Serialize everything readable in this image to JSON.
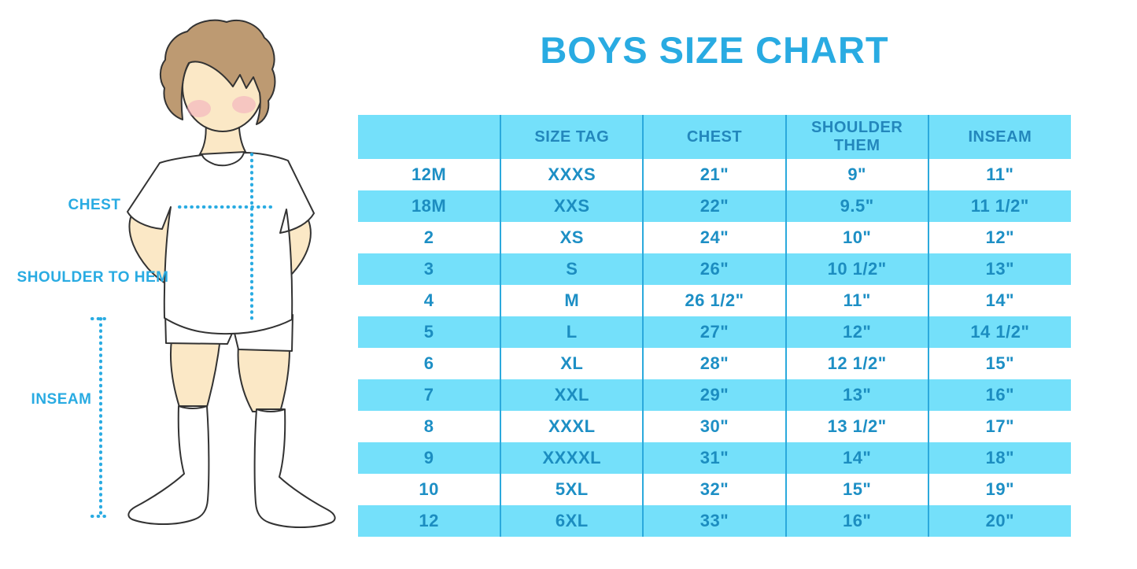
{
  "title": "BOYS SIZE CHART",
  "colors": {
    "accent_blue": "#29ABE2",
    "row_highlight": "#74E0FA",
    "table_text": "#1D8FC5",
    "column_separator": "#2BA9DC",
    "hair_brown": "#BD9A72",
    "skin_tan": "#FBE8C6",
    "blush_pink": "#F2A9BE"
  },
  "figure": {
    "description": "boy-measurement-illustration",
    "labels": {
      "chest": "CHEST",
      "shoulder_to_hem": "SHOULDER TO HEM",
      "inseam": "INSEAM"
    }
  },
  "table": {
    "columns": [
      "",
      "SIZE TAG",
      "CHEST",
      "SHOULDER THEM",
      "INSEAM"
    ],
    "rows": [
      [
        "12M",
        "XXXS",
        "21\"",
        "9\"",
        "11\""
      ],
      [
        "18M",
        "XXS",
        "22\"",
        "9.5\"",
        "11 1/2\""
      ],
      [
        "2",
        "XS",
        "24\"",
        "10\"",
        "12\""
      ],
      [
        "3",
        "S",
        "26\"",
        "10 1/2\"",
        "13\""
      ],
      [
        "4",
        "M",
        "26 1/2\"",
        "11\"",
        "14\""
      ],
      [
        "5",
        "L",
        "27\"",
        "12\"",
        "14 1/2\""
      ],
      [
        "6",
        "XL",
        "28\"",
        "12 1/2\"",
        "15\""
      ],
      [
        "7",
        "XXL",
        "29\"",
        "13\"",
        "16\""
      ],
      [
        "8",
        "XXXL",
        "30\"",
        "13 1/2\"",
        "17\""
      ],
      [
        "9",
        "XXXXL",
        "31\"",
        "14\"",
        "18\""
      ],
      [
        "10",
        "5XL",
        "32\"",
        "15\"",
        "19\""
      ],
      [
        "12",
        "6XL",
        "33\"",
        "16\"",
        "20\""
      ]
    ]
  }
}
